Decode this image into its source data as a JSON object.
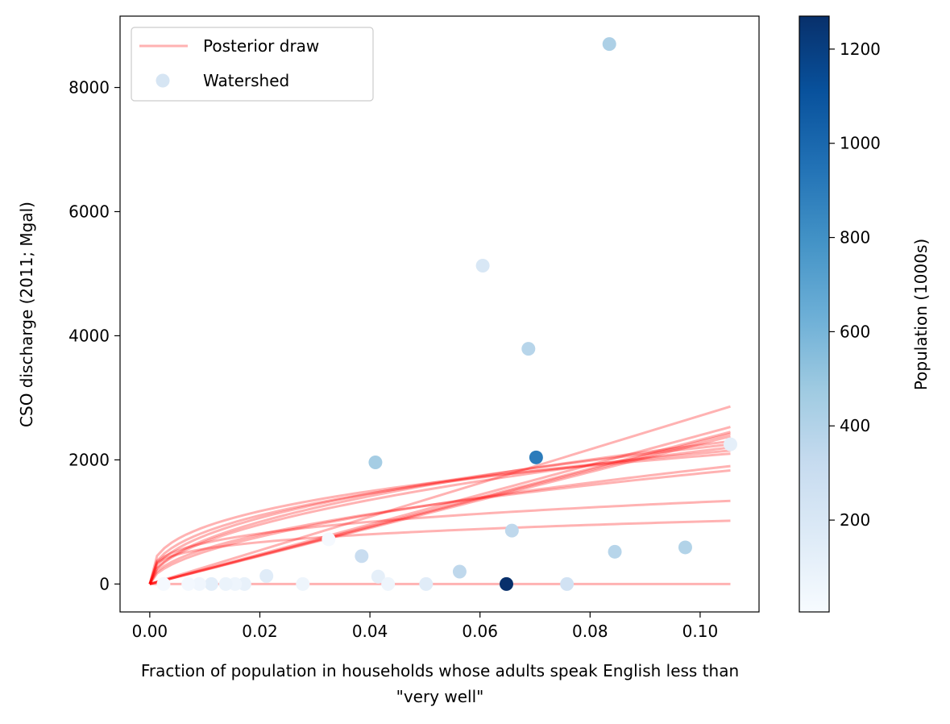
{
  "chart_data": {
    "type": "scatter",
    "xlabel_line1": "Fraction of population in households whose adults speak English less than",
    "xlabel_line2": "\"very well\"",
    "ylabel": "CSO discharge (2011; Mgal)",
    "colorbar_label": "Population (1000s)",
    "xlim": [
      -0.0054,
      0.1107
    ],
    "ylim": [
      -450,
      9150
    ],
    "clim": [
      5,
      1270
    ],
    "colormap": "Blues",
    "xticks": [
      0.0,
      0.02,
      0.04,
      0.06,
      0.08,
      0.1
    ],
    "xtick_labels": [
      "0.00",
      "0.02",
      "0.04",
      "0.06",
      "0.08",
      "0.10"
    ],
    "yticks": [
      0,
      2000,
      4000,
      6000,
      8000
    ],
    "ytick_labels": [
      "0",
      "2000",
      "4000",
      "6000",
      "8000"
    ],
    "cticks": [
      200,
      400,
      600,
      800,
      1000,
      1200
    ],
    "ctick_labels": [
      "200",
      "400",
      "600",
      "800",
      "1000",
      "1200"
    ],
    "legend": {
      "position": "upper-left",
      "entries": [
        {
          "label": "Posterior draw",
          "kind": "line",
          "color": "#ff0000",
          "alpha": 0.3
        },
        {
          "label": "Watershed",
          "kind": "marker",
          "color": "#d6e5f3"
        }
      ]
    },
    "posterior_draws": {
      "x_max": 0.1055,
      "color": "#ff0000",
      "alpha": 0.3,
      "draws": [
        {
          "end": 2860,
          "power": 1.0
        },
        {
          "end": 2530,
          "power": 1.0
        },
        {
          "end": 2450,
          "power": 1.0
        },
        {
          "end": 2420,
          "power": 1.0
        },
        {
          "end": 2380,
          "power": 1.0
        },
        {
          "end": 2300,
          "power": 0.5
        },
        {
          "end": 2250,
          "power": 0.45
        },
        {
          "end": 2200,
          "power": 0.5
        },
        {
          "end": 2150,
          "power": 0.4
        },
        {
          "end": 2100,
          "power": 0.35
        },
        {
          "end": 1900,
          "power": 0.55
        },
        {
          "end": 1830,
          "power": 0.5
        },
        {
          "end": 1340,
          "power": 0.3
        },
        {
          "end": 1020,
          "power": 0.25
        },
        {
          "end": 0,
          "power": 1.0
        }
      ]
    },
    "watersheds": [
      {
        "x": 0.0835,
        "y": 8700,
        "pop": 420
      },
      {
        "x": 0.0605,
        "y": 5130,
        "pop": 200
      },
      {
        "x": 0.0688,
        "y": 3790,
        "pop": 380
      },
      {
        "x": 0.041,
        "y": 1960,
        "pop": 450
      },
      {
        "x": 0.0702,
        "y": 2040,
        "pop": 900
      },
      {
        "x": 0.1055,
        "y": 2250,
        "pop": 120
      },
      {
        "x": 0.0658,
        "y": 860,
        "pop": 350
      },
      {
        "x": 0.0385,
        "y": 450,
        "pop": 300
      },
      {
        "x": 0.0845,
        "y": 520,
        "pop": 380
      },
      {
        "x": 0.0973,
        "y": 590,
        "pop": 400
      },
      {
        "x": 0.0563,
        "y": 200,
        "pop": 350
      },
      {
        "x": 0.0648,
        "y": 0,
        "pop": 1270
      },
      {
        "x": 0.0758,
        "y": 0,
        "pop": 250
      },
      {
        "x": 0.0502,
        "y": 0,
        "pop": 150
      },
      {
        "x": 0.0415,
        "y": 120,
        "pop": 120
      },
      {
        "x": 0.0433,
        "y": 0,
        "pop": 60
      },
      {
        "x": 0.0212,
        "y": 130,
        "pop": 150
      },
      {
        "x": 0.0278,
        "y": 0,
        "pop": 60
      },
      {
        "x": 0.0112,
        "y": 0,
        "pop": 130
      },
      {
        "x": 0.0172,
        "y": 0,
        "pop": 100
      },
      {
        "x": 0.0155,
        "y": 0,
        "pop": 60
      },
      {
        "x": 0.0138,
        "y": 0,
        "pop": 80
      },
      {
        "x": 0.009,
        "y": 0,
        "pop": 50
      },
      {
        "x": 0.007,
        "y": 0,
        "pop": 30
      },
      {
        "x": 0.0025,
        "y": 0,
        "pop": 20
      },
      {
        "x": 0.0325,
        "y": 720,
        "pop": 20
      }
    ]
  }
}
